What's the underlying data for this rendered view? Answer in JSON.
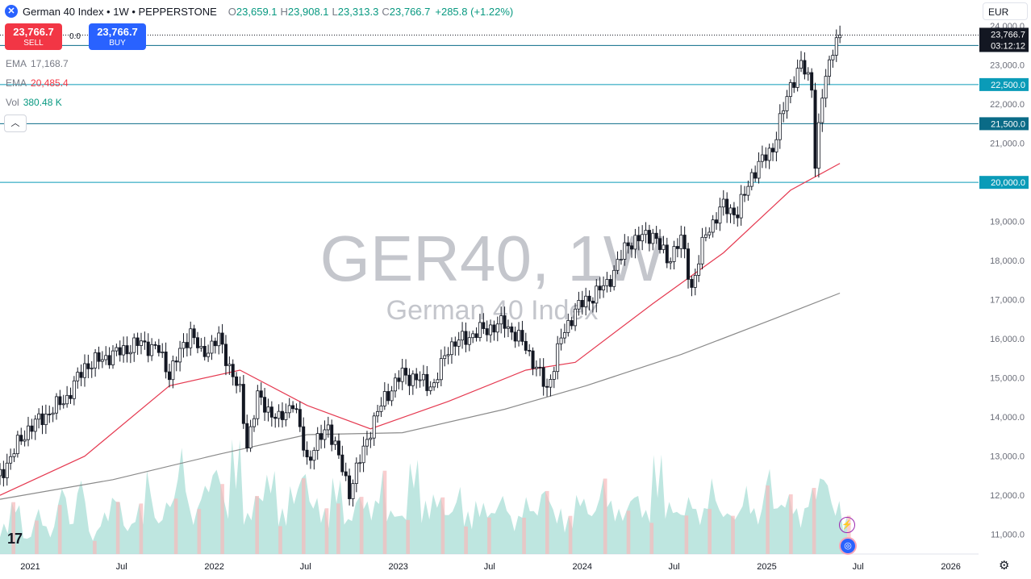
{
  "header": {
    "title": "German 40 Index • 1W • PEPPERSTONE",
    "open_label": "O",
    "open": "23,659.1",
    "high_label": "H",
    "high": "23,908.1",
    "low_label": "L",
    "low": "23,313.3",
    "close_label": "C",
    "close": "23,766.7",
    "change": "+285.8 (+1.22%)"
  },
  "trade": {
    "sell_price": "23,766.7",
    "sell_label": "SELL",
    "spread": "0.0",
    "buy_price": "23,766.7",
    "buy_label": "BUY"
  },
  "indicators": [
    {
      "key": "EMA",
      "value": "17,168.7",
      "color": "#787b86"
    },
    {
      "key": "EMA",
      "value": "20,485.4",
      "color": "#f23645"
    },
    {
      "key": "Vol",
      "value": "380.48 K",
      "color": "#089981"
    }
  ],
  "currency": "EUR",
  "collapse_icon": "chevron-up-icon",
  "watermark": {
    "symbol": "GER40, 1W",
    "name": "German 40 Index"
  },
  "chart_data": {
    "type": "candlestick",
    "y_axis": {
      "min": 10500,
      "max": 24250,
      "ticks": [
        "24,000.0",
        "23,000.0",
        "22,000.0",
        "21,000.0",
        "20,000.0",
        "19,000.0",
        "18,000.0",
        "17,000.0",
        "16,000.0",
        "15,000.0",
        "14,000.0",
        "13,000.0",
        "12,000.0",
        "11,000.0"
      ],
      "tick_values": [
        24000,
        23000,
        22000,
        21000,
        20000,
        19000,
        18000,
        17000,
        16000,
        15000,
        14000,
        13000,
        12000,
        11000
      ]
    },
    "x_axis": {
      "labels": [
        "2021",
        "Jul",
        "2022",
        "Jul",
        "2023",
        "Jul",
        "2024",
        "Jul",
        "2025",
        "Jul",
        "2026"
      ],
      "dates": [
        "2021-01-01",
        "2021-07-01",
        "2022-01-01",
        "2022-07-01",
        "2023-01-01",
        "2023-07-01",
        "2024-01-01",
        "2024-07-01",
        "2025-01-01",
        "2025-07-01",
        "2026-01-01"
      ],
      "start": "2020-11-02",
      "end": "2026-02-25"
    },
    "horizontal_lines": [
      {
        "value": 23500,
        "label": "23,500.0",
        "color": "#0a6b87"
      },
      {
        "value": 22500,
        "label": "22,500.0",
        "color": "#0a9bb8"
      },
      {
        "value": 21500,
        "label": "21,500.0",
        "color": "#0a6b87"
      },
      {
        "value": 20000,
        "label": "20,000.0",
        "color": "#0a9bb8"
      }
    ],
    "current": {
      "value": 23766.7,
      "label": "23,766.7",
      "countdown": "03:12:12"
    },
    "price_path": [
      [
        "2020-11-02",
        12500
      ],
      [
        "2020-12-07",
        13300
      ],
      [
        "2020-12-28",
        13700
      ],
      [
        "2021-02-01",
        14050
      ],
      [
        "2021-03-15",
        14500
      ],
      [
        "2021-04-19",
        15300
      ],
      [
        "2021-06-14",
        15600
      ],
      [
        "2021-08-09",
        15900
      ],
      [
        "2021-09-13",
        15700
      ],
      [
        "2021-10-04",
        15100
      ],
      [
        "2021-11-15",
        16200
      ],
      [
        "2021-12-06",
        15600
      ],
      [
        "2022-01-10",
        16000
      ],
      [
        "2022-02-21",
        14600
      ],
      [
        "2022-03-07",
        13300
      ],
      [
        "2022-03-28",
        14500
      ],
      [
        "2022-05-09",
        13900
      ],
      [
        "2022-06-06",
        14400
      ],
      [
        "2022-07-04",
        12900
      ],
      [
        "2022-08-15",
        13800
      ],
      [
        "2022-09-26",
        12100
      ],
      [
        "2022-11-07",
        13700
      ],
      [
        "2022-12-05",
        14500
      ],
      [
        "2023-01-09",
        15100
      ],
      [
        "2023-03-13",
        14800
      ],
      [
        "2023-04-10",
        15800
      ],
      [
        "2023-06-12",
        16200
      ],
      [
        "2023-07-31",
        16400
      ],
      [
        "2023-09-11",
        15800
      ],
      [
        "2023-10-23",
        14700
      ],
      [
        "2023-11-20",
        16000
      ],
      [
        "2023-12-18",
        16750
      ],
      [
        "2024-02-19",
        17400
      ],
      [
        "2024-04-01",
        18450
      ],
      [
        "2024-05-20",
        18700
      ],
      [
        "2024-06-17",
        18000
      ],
      [
        "2024-07-15",
        18550
      ],
      [
        "2024-08-05",
        17300
      ],
      [
        "2024-09-02",
        18700
      ],
      [
        "2024-10-07",
        19400
      ],
      [
        "2024-11-04",
        19200
      ],
      [
        "2024-12-02",
        20200
      ],
      [
        "2025-01-13",
        20900
      ],
      [
        "2025-02-17",
        22500
      ],
      [
        "2025-03-10",
        23000
      ],
      [
        "2025-03-31",
        22500
      ],
      [
        "2025-04-07",
        20500
      ],
      [
        "2025-04-21",
        22200
      ],
      [
        "2025-05-12",
        23500
      ],
      [
        "2025-05-26",
        23766.7
      ]
    ],
    "ema_red": [
      [
        "2020-11-02",
        12000
      ],
      [
        "2021-04-19",
        13000
      ],
      [
        "2021-10-04",
        14800
      ],
      [
        "2022-02-21",
        15200
      ],
      [
        "2022-07-04",
        14300
      ],
      [
        "2022-11-07",
        13700
      ],
      [
        "2023-04-10",
        14400
      ],
      [
        "2023-09-11",
        15200
      ],
      [
        "2023-12-18",
        15400
      ],
      [
        "2024-05-20",
        16900
      ],
      [
        "2024-10-07",
        18200
      ],
      [
        "2025-02-17",
        19800
      ],
      [
        "2025-05-26",
        20485.4
      ]
    ],
    "ema_gray": [
      [
        "2020-11-02",
        11900
      ],
      [
        "2021-06-14",
        12400
      ],
      [
        "2022-01-10",
        13050
      ],
      [
        "2022-07-04",
        13550
      ],
      [
        "2023-01-09",
        13600
      ],
      [
        "2023-07-31",
        14200
      ],
      [
        "2024-01-08",
        14800
      ],
      [
        "2024-07-15",
        15600
      ],
      [
        "2025-01-13",
        16500
      ],
      [
        "2025-05-26",
        17168.7
      ]
    ],
    "volume_path": [
      0.2,
      0.35,
      0.12,
      0.3,
      0.18,
      0.45,
      0.22,
      0.5,
      0.15,
      0.28,
      0.4,
      0.2,
      0.33,
      0.55,
      0.25,
      0.38,
      0.7,
      0.3,
      0.48,
      0.6,
      0.35,
      0.75,
      0.28,
      0.42,
      0.55,
      0.3,
      0.45,
      0.6,
      0.38,
      0.3,
      0.5,
      0.25,
      0.4,
      0.35,
      0.55,
      0.3,
      0.28,
      0.62,
      0.35,
      0.4,
      0.3,
      0.45,
      0.28,
      0.35,
      0.3,
      0.4,
      0.25,
      0.38,
      0.3,
      0.45,
      0.3,
      0.25,
      0.4,
      0.3,
      0.5,
      0.35,
      0.3,
      0.42,
      0.3,
      0.65,
      0.35,
      0.3,
      0.4,
      0.3,
      0.5,
      0.3,
      0.28,
      0.45,
      0.3,
      0.6,
      0.35,
      0.4,
      0.3,
      0.45,
      0.55,
      0.35,
      0.25
    ]
  }
}
